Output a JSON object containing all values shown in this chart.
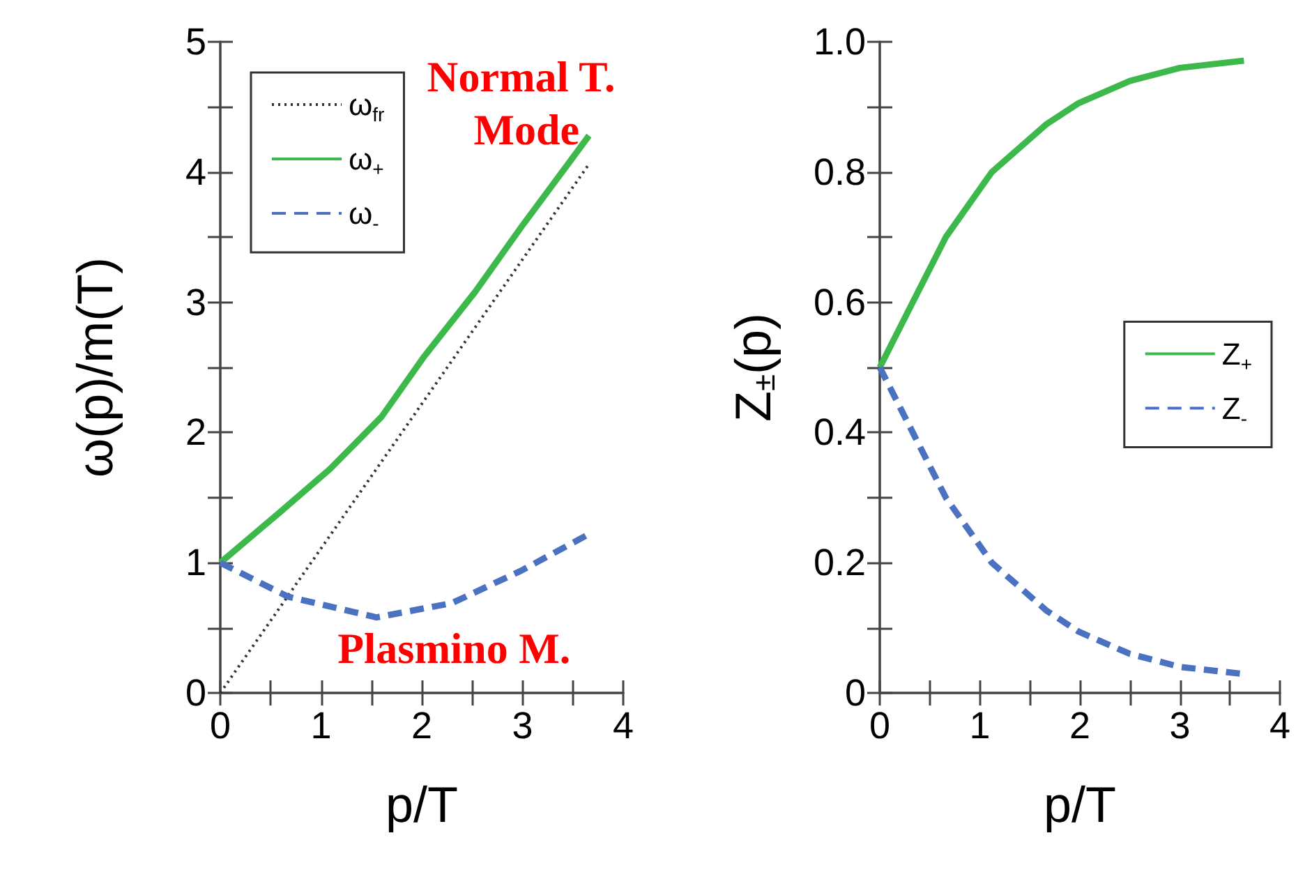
{
  "chart_data": [
    {
      "type": "line",
      "xlabel": "p/T",
      "ylabel": "ω(p)/m(T)",
      "xlim": [
        0,
        4
      ],
      "ylim": [
        0,
        5
      ],
      "xticks": [
        0,
        {
          "value": 0.5,
          "label": null
        },
        1,
        {
          "value": 1.5,
          "label": null
        },
        2,
        {
          "value": 2.5,
          "label": null
        },
        3,
        {
          "value": 3.5,
          "label": null
        },
        4
      ],
      "yticks": [
        0,
        {
          "value": 0.5,
          "label": null
        },
        1,
        {
          "value": 1.5,
          "label": null
        },
        2,
        {
          "value": 2.5,
          "label": null
        },
        3,
        {
          "value": 3.5,
          "label": null
        },
        4,
        {
          "value": 4.5,
          "label": null
        },
        5
      ],
      "legend": "top left",
      "grid": false,
      "annotations": [
        "Normal T. Mode",
        "Plasmino M."
      ],
      "series": [
        {
          "name": "ω$_{fr}$",
          "color": "#333333",
          "line_style": "dotted",
          "x": [
            0,
            3.65
          ],
          "values": [
            0,
            4.05
          ]
        },
        {
          "name": "ω$_{+}$",
          "color": "#3cb94a",
          "line_style": "solid",
          "x": [
            0,
            0.58,
            1.09,
            1.6,
            2.02,
            2.53,
            2.99,
            3.46,
            3.66
          ],
          "values": [
            1,
            1.38,
            1.72,
            2.12,
            2.58,
            3.08,
            3.58,
            4.07,
            4.28
          ]
        },
        {
          "name": "ω$_{-}$",
          "color": "#4a72c0",
          "line_style": "dashed",
          "x": [
            0,
            0.67,
            1.55,
            2.3,
            2.99,
            3.66
          ],
          "values": [
            1,
            0.74,
            0.58,
            0.69,
            0.94,
            1.22
          ]
        }
      ]
    },
    {
      "type": "line",
      "xlabel": "p/T",
      "ylabel": "Z$_{±}$(p)",
      "xlim": [
        0,
        4
      ],
      "ylim": [
        0,
        1
      ],
      "xticks": [
        0,
        {
          "value": 0.5,
          "label": null
        },
        1,
        {
          "value": 1.5,
          "label": null
        },
        2,
        {
          "value": 2.5,
          "label": null
        },
        3,
        {
          "value": 3.5,
          "label": null
        },
        4
      ],
      "yticks": [
        0,
        {
          "value": 0.1,
          "label": null
        },
        0.2,
        {
          "value": 0.3,
          "label": null
        },
        0.4,
        {
          "value": 0.5,
          "label": null
        },
        0.6,
        {
          "value": 0.7,
          "label": null
        },
        0.8,
        {
          "value": 0.9,
          "label": null
        },
        {
          "value": 1,
          "label": "1.0"
        }
      ],
      "legend": "right",
      "grid": false,
      "series": [
        {
          "name": "Z$_{+}$",
          "color": "#3cb94a",
          "line_style": "solid",
          "x": [
            0,
            0.29,
            0.66,
            1.12,
            1.67,
            1.99,
            2.5,
            3.0,
            3.64
          ],
          "values": [
            0.5,
            0.588,
            0.7,
            0.8,
            0.874,
            0.906,
            0.94,
            0.96,
            0.971
          ]
        },
        {
          "name": "Z$_{-}$",
          "color": "#4a72c0",
          "line_style": "dashed",
          "x": [
            0,
            0.29,
            0.66,
            1.12,
            1.67,
            1.99,
            2.5,
            3.0,
            3.64
          ],
          "values": [
            0.5,
            0.412,
            0.3,
            0.2,
            0.126,
            0.094,
            0.06,
            0.04,
            0.029
          ]
        }
      ]
    }
  ]
}
